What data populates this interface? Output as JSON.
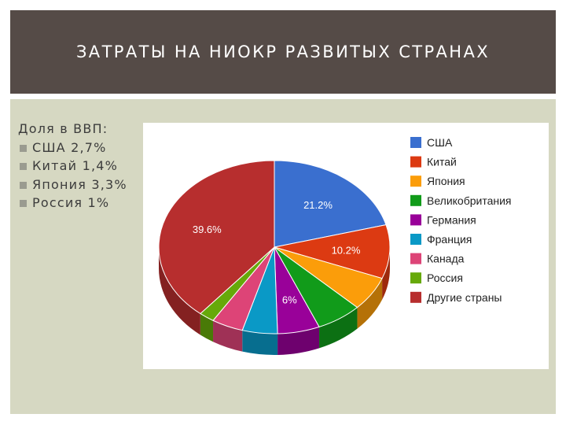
{
  "header": {
    "title": "ЗАТРАТЫ НА НИОКР РАЗВИТЫХ СТРАНАХ"
  },
  "bullets": {
    "intro": "Доля в ВВП:",
    "items": [
      "США 2,7%",
      "Китай 1,4%",
      "Япония 3,3%",
      "Россия 1%"
    ]
  },
  "chart_data": {
    "type": "pie",
    "style": "3d",
    "legend_position": "right",
    "slices": [
      {
        "label": "США",
        "value": 21.2,
        "data_label": "21.2%",
        "color": "#3a6fcf"
      },
      {
        "label": "Китай",
        "value": 10.2,
        "data_label": "10.2%",
        "color": "#dc3a12"
      },
      {
        "label": "Япония",
        "value": 6.5,
        "data_label": "",
        "color": "#fb9d0a"
      },
      {
        "label": "Великобритания",
        "value": 6.5,
        "data_label": "",
        "color": "#119b1a"
      },
      {
        "label": "Германия",
        "value": 6.0,
        "data_label": "6%",
        "color": "#990199"
      },
      {
        "label": "Франция",
        "value": 5.0,
        "data_label": "",
        "color": "#0a99c6"
      },
      {
        "label": "Канада",
        "value": 4.5,
        "data_label": "",
        "color": "#dd4477"
      },
      {
        "label": "Россия",
        "value": 2.2,
        "data_label": "",
        "color": "#66a90a"
      },
      {
        "label": "Другие страны",
        "value": 39.6,
        "data_label": "39.6%",
        "color": "#b72e2e"
      }
    ]
  }
}
